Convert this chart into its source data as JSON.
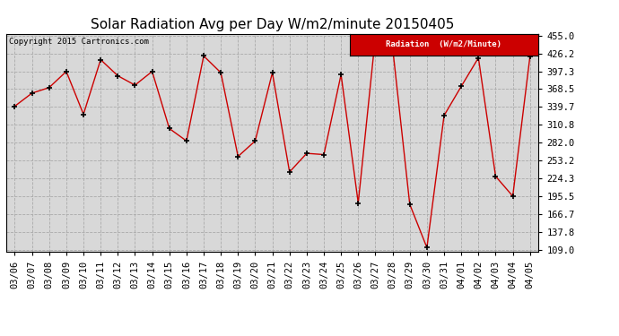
{
  "title": "Solar Radiation Avg per Day W/m2/minute 20150405",
  "copyright": "Copyright 2015 Cartronics.com",
  "legend_label": "Radiation  (W/m2/Minute)",
  "dates": [
    "03/06",
    "03/07",
    "03/08",
    "03/09",
    "03/10",
    "03/11",
    "03/12",
    "03/13",
    "03/14",
    "03/15",
    "03/16",
    "03/17",
    "03/18",
    "03/19",
    "03/20",
    "03/21",
    "03/22",
    "03/23",
    "03/24",
    "03/25",
    "03/26",
    "03/27",
    "03/28",
    "03/29",
    "03/30",
    "03/31",
    "04/01",
    "04/02",
    "04/03",
    "04/04",
    "04/05"
  ],
  "values": [
    341.0,
    362.0,
    371.0,
    397.0,
    328.0,
    416.0,
    390.0,
    375.0,
    397.0,
    305.0,
    285.0,
    422.0,
    395.0,
    260.0,
    285.0,
    395.0,
    235.0,
    265.0,
    263.0,
    392.0,
    185.0,
    453.0,
    436.0,
    183.0,
    113.0,
    326.0,
    373.0,
    419.0,
    228.0,
    196.0,
    421.0
  ],
  "line_color": "#cc0000",
  "marker_color": "#000000",
  "bg_color": "#ffffff",
  "plot_bg_color": "#d8d8d8",
  "grid_color": "#aaaaaa",
  "title_fontsize": 11,
  "tick_fontsize": 7.5,
  "legend_bg": "#cc0000",
  "legend_text_color": "#ffffff",
  "ymin": 109.0,
  "ymax": 455.0,
  "yticks": [
    109.0,
    137.8,
    166.7,
    195.5,
    224.3,
    253.2,
    282.0,
    310.8,
    339.7,
    368.5,
    397.3,
    426.2,
    455.0
  ]
}
